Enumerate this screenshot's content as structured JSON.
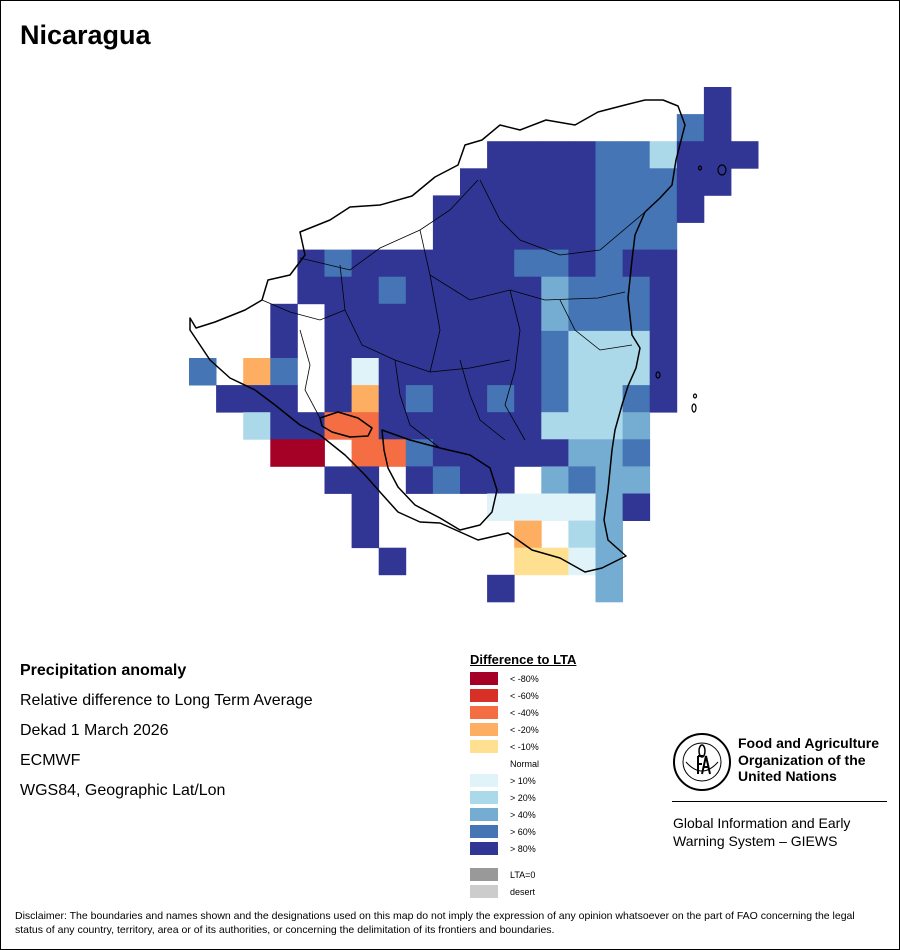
{
  "title": "Nicaragua",
  "info": {
    "heading": "Precipitation anomaly",
    "description": "Relative difference to Long Term Average",
    "period": "Dekad 1 March 2026",
    "source": "ECMWF",
    "projection": "WGS84, Geographic Lat/Lon"
  },
  "legend": {
    "title": "Difference to LTA",
    "classes": [
      {
        "key": "m80",
        "label": "< -80%",
        "color": "#a50026"
      },
      {
        "key": "m60",
        "label": "< -60%",
        "color": "#d73027"
      },
      {
        "key": "m40",
        "label": "< -40%",
        "color": "#f46d43"
      },
      {
        "key": "m20",
        "label": "< -20%",
        "color": "#fdae61"
      },
      {
        "key": "m10",
        "label": "< -10%",
        "color": "#fee090"
      },
      {
        "key": "normal",
        "label": "Normal",
        "color": "#ffffff"
      },
      {
        "key": "p10",
        "label": "> 10%",
        "color": "#e0f3f8"
      },
      {
        "key": "p20",
        "label": "> 20%",
        "color": "#abd9e9"
      },
      {
        "key": "p40",
        "label": "> 40%",
        "color": "#74add1"
      },
      {
        "key": "p60",
        "label": "> 60%",
        "color": "#4575b4"
      },
      {
        "key": "p80",
        "label": "> 80%",
        "color": "#313695"
      }
    ],
    "extra": [
      {
        "key": "lta0",
        "label": "LTA=0",
        "color": "#999999"
      },
      {
        "key": "desert",
        "label": "desert",
        "color": "#cccccc"
      }
    ]
  },
  "grid": {
    "rows": [
      [
        "",
        "",
        "",
        "",
        "",
        "",
        "",
        "",
        "",
        "",
        "",
        "",
        "",
        "",
        "",
        "",
        "",
        "",
        "",
        "p80",
        ""
      ],
      [
        "",
        "",
        "",
        "",
        "",
        "",
        "",
        "",
        "",
        "",
        "",
        "",
        "",
        "",
        "",
        "",
        "",
        "",
        "p60",
        "p80",
        ""
      ],
      [
        "",
        "",
        "",
        "",
        "",
        "",
        "",
        "",
        "",
        "",
        "",
        "p80",
        "p80",
        "p80",
        "p80",
        "p60",
        "p60",
        "p20",
        "p80",
        "p80",
        "p80"
      ],
      [
        "",
        "",
        "",
        "",
        "",
        "",
        "",
        "",
        "",
        "",
        "p80",
        "p80",
        "p80",
        "p80",
        "p80",
        "p60",
        "p60",
        "p60",
        "p80",
        "p80",
        ""
      ],
      [
        "",
        "",
        "",
        "",
        "",
        "",
        "",
        "",
        "",
        "p80",
        "p80",
        "p80",
        "p80",
        "p80",
        "p80",
        "p60",
        "p60",
        "p60",
        "p80",
        "",
        ""
      ],
      [
        "",
        "",
        "",
        "",
        "",
        "",
        "",
        "",
        "",
        "p80",
        "p80",
        "p80",
        "p80",
        "p80",
        "p80",
        "p60",
        "p60",
        "p60",
        "",
        "",
        ""
      ],
      [
        "",
        "",
        "",
        "",
        "p80",
        "p60",
        "p80",
        "p80",
        "p80",
        "p80",
        "p80",
        "p80",
        "p60",
        "p60",
        "p80",
        "p60",
        "p80",
        "p80",
        "",
        "",
        ""
      ],
      [
        "",
        "",
        "",
        "",
        "p80",
        "p80",
        "p80",
        "p60",
        "p80",
        "p80",
        "p80",
        "p80",
        "p80",
        "p40",
        "p60",
        "p60",
        "p60",
        "p80",
        "",
        "",
        ""
      ],
      [
        "",
        "",
        "",
        "p80",
        "",
        "p80",
        "p80",
        "p80",
        "p80",
        "p80",
        "p80",
        "p80",
        "p80",
        "p40",
        "p60",
        "p60",
        "p60",
        "p80",
        "",
        "",
        ""
      ],
      [
        "",
        "",
        "",
        "p80",
        "",
        "p80",
        "p80",
        "p80",
        "p80",
        "p80",
        "p80",
        "p80",
        "p80",
        "p60",
        "p20",
        "p20",
        "p20",
        "p80",
        "",
        "",
        ""
      ],
      [
        "p60",
        "",
        "m20",
        "p60",
        "",
        "p80",
        "p10",
        "p80",
        "p80",
        "p80",
        "p80",
        "p80",
        "p80",
        "p60",
        "p20",
        "p20",
        "p20",
        "p80",
        "",
        "",
        ""
      ],
      [
        "",
        "p80",
        "p80",
        "p80",
        "",
        "p80",
        "m20",
        "p80",
        "p60",
        "p80",
        "p80",
        "p60",
        "p80",
        "p60",
        "p20",
        "p20",
        "p60",
        "p80",
        "",
        "",
        ""
      ],
      [
        "",
        "",
        "p20",
        "p80",
        "p80",
        "m40",
        "m40",
        "p80",
        "p80",
        "p80",
        "p80",
        "p80",
        "p80",
        "p20",
        "p20",
        "p20",
        "p40",
        "",
        "",
        "",
        ""
      ],
      [
        "",
        "",
        "",
        "m80",
        "m80",
        "",
        "m40",
        "m40",
        "p60",
        "p80",
        "p80",
        "p80",
        "p80",
        "p80",
        "p40",
        "p40",
        "p60",
        "",
        "",
        "",
        ""
      ],
      [
        "",
        "",
        "",
        "",
        "",
        "p80",
        "p80",
        "",
        "p80",
        "p60",
        "p80",
        "p80",
        "",
        "p40",
        "p60",
        "p40",
        "p40",
        "",
        "",
        "",
        ""
      ],
      [
        "",
        "",
        "",
        "",
        "",
        "",
        "p80",
        "",
        "",
        "",
        "",
        "p10",
        "p10",
        "p10",
        "p10",
        "p40",
        "p80",
        "",
        "",
        "",
        ""
      ],
      [
        "",
        "",
        "",
        "",
        "",
        "",
        "p80",
        "",
        "",
        "",
        "",
        "",
        "m20",
        "",
        "p20",
        "p40",
        "",
        "",
        "",
        "",
        ""
      ],
      [
        "",
        "",
        "",
        "",
        "",
        "",
        "",
        "p80",
        "",
        "",
        "",
        "",
        "m10",
        "m10",
        "p10",
        "p40",
        "",
        "",
        "",
        "",
        ""
      ],
      [
        "",
        "",
        "",
        "",
        "",
        "",
        "",
        "",
        "",
        "",
        "",
        "p80",
        "",
        "",
        "",
        "p40",
        "",
        "",
        "",
        "",
        ""
      ]
    ]
  },
  "org": {
    "name_lines": [
      "Food and Agriculture",
      "Organization of the",
      "United Nations"
    ],
    "system_lines": [
      "Global Information and Early",
      "Warning System – GIEWS"
    ]
  },
  "disclaimer": "Disclaimer: The boundaries and names shown and the designations used on this map do not imply the expression of any opinion whatsoever on the part of FAO concerning the legal status of any country, territory, area or of its authorities, or concerning the delimitation of its frontiers and boundaries."
}
